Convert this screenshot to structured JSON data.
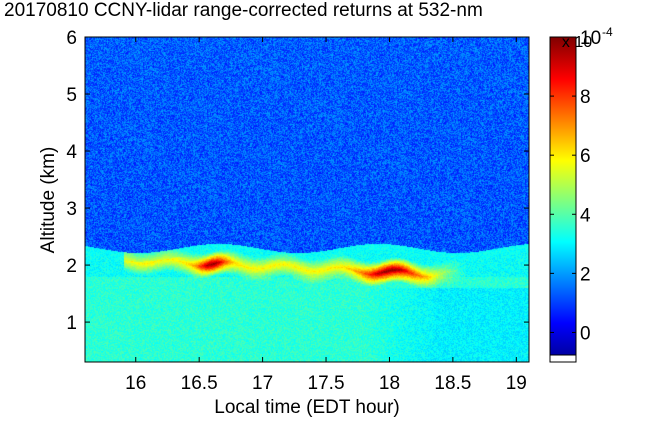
{
  "chart_data": {
    "type": "heatmap",
    "title": "20170810 CCNY-lidar range-corrected returns at 532-nm",
    "xlabel": "Local time (EDT hour)",
    "ylabel": "Altitude (km)",
    "xlim": [
      15.6,
      19.1
    ],
    "ylim": [
      0.3,
      6
    ],
    "xticks": [
      "16",
      "16.5",
      "17",
      "17.5",
      "18",
      "18.5",
      "19"
    ],
    "yticks": [
      "1",
      "2",
      "3",
      "4",
      "5",
      "6"
    ],
    "colorbar": {
      "range": [
        -1,
        10
      ],
      "ticks": [
        "0",
        "2",
        "4",
        "6",
        "8",
        "10"
      ],
      "multiplier": "x 10",
      "exponent": "-4",
      "colormap": "jet"
    },
    "layers": {
      "free_troposphere_value": 1.3,
      "boundary_layer_top_km": 2.3,
      "boundary_layer_value": 3.2,
      "aerosol_plume": {
        "start_hour": 15.9,
        "end_hour": 18.3,
        "altitude_km_start": 2.1,
        "altitude_km_end": 1.85,
        "peak_value": 10,
        "typical_value": 6
      }
    }
  }
}
